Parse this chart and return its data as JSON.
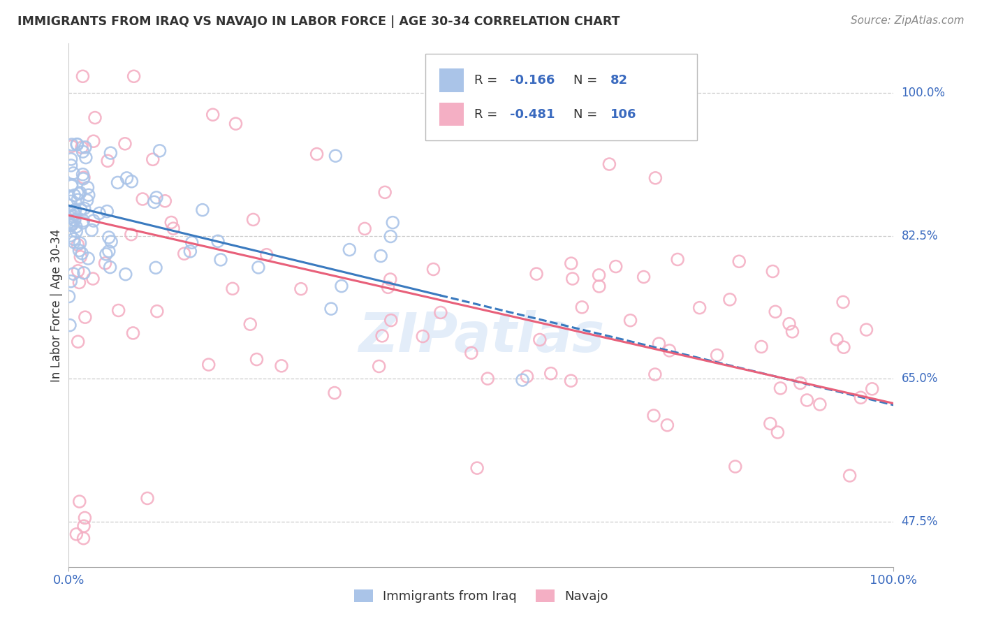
{
  "title": "IMMIGRANTS FROM IRAQ VS NAVAJO IN LABOR FORCE | AGE 30-34 CORRELATION CHART",
  "source": "Source: ZipAtlas.com",
  "ylabel": "In Labor Force | Age 30-34",
  "xlim": [
    0.0,
    1.0
  ],
  "ylim": [
    0.42,
    1.06
  ],
  "yticks": [
    0.475,
    0.65,
    0.825,
    1.0
  ],
  "ytick_labels": [
    "47.5%",
    "65.0%",
    "82.5%",
    "100.0%"
  ],
  "xtick_labels": [
    "0.0%",
    "100.0%"
  ],
  "blue_R": -0.166,
  "blue_N": 82,
  "pink_R": -0.481,
  "pink_N": 106,
  "blue_color": "#aac4e8",
  "pink_color": "#f4afc4",
  "blue_line_color": "#3a7abf",
  "pink_line_color": "#e8607a",
  "watermark": "ZIPatlas",
  "blue_line_x0": 0.0,
  "blue_line_y0": 0.862,
  "blue_line_x1": 1.0,
  "blue_line_y1": 0.618,
  "pink_line_x0": 0.0,
  "pink_line_y0": 0.85,
  "pink_line_x1": 1.0,
  "pink_line_y1": 0.62
}
